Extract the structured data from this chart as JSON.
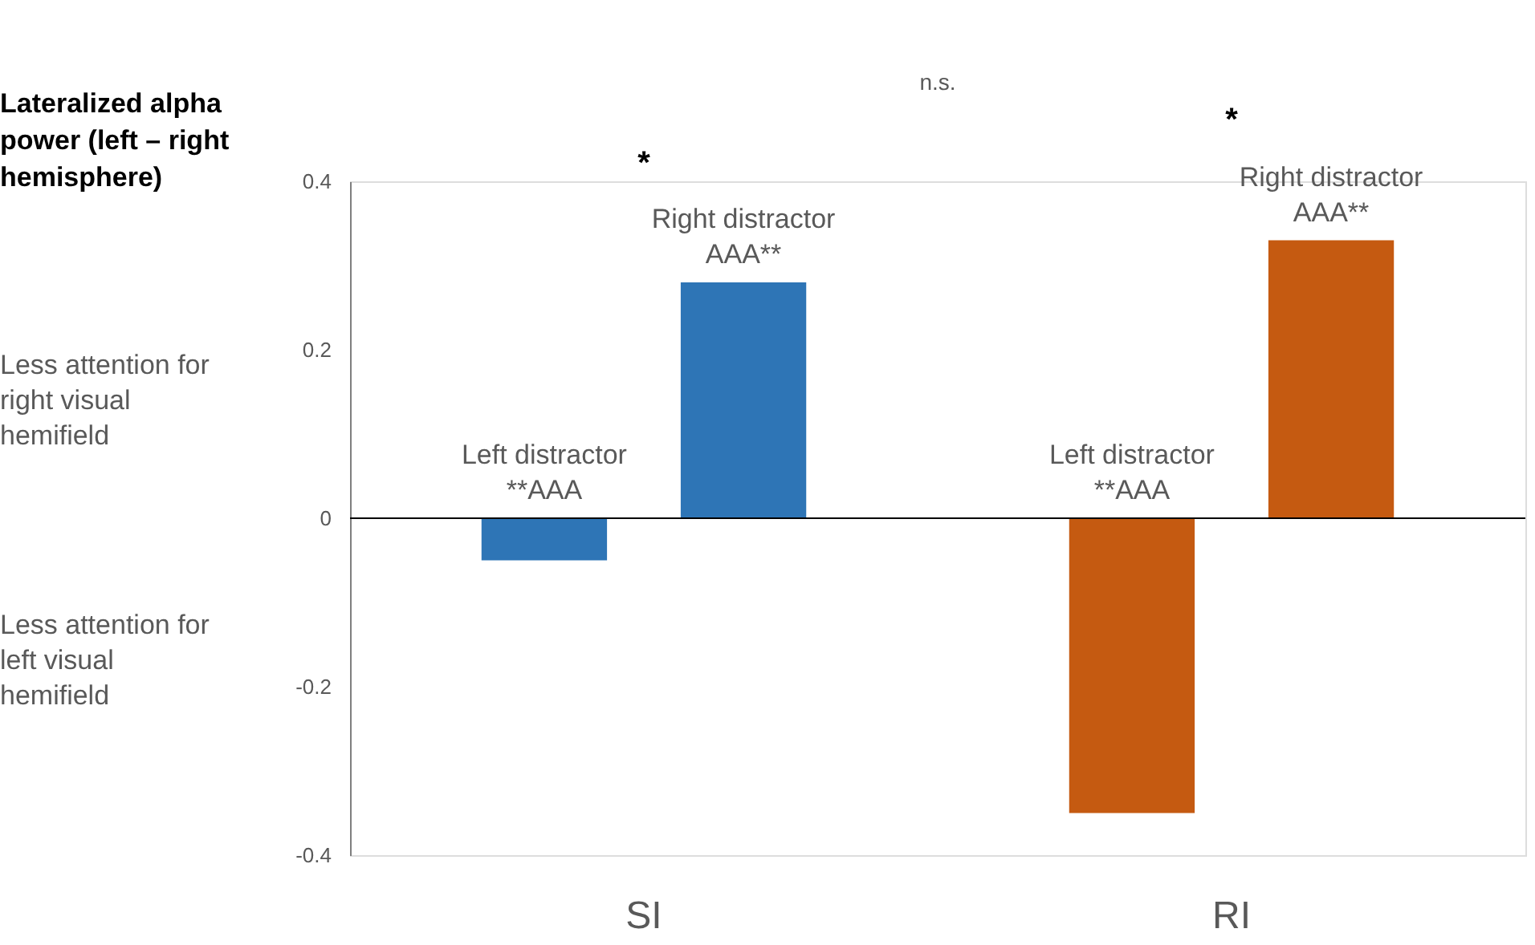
{
  "chart_data": {
    "type": "bar",
    "categories": [
      "SI",
      "RI"
    ],
    "ylabel": "Lateralized alpha power (left – right hemisphere)",
    "series": [
      {
        "name": "Left distractor",
        "colors": [
          "#2e75b6",
          "#c55a11"
        ],
        "values": [
          -0.05,
          -0.35
        ],
        "value_labels": [
          "**AAA",
          "**AAA"
        ]
      },
      {
        "name": "Right distractor",
        "colors": [
          "#2e75b6",
          "#c55a11"
        ],
        "values": [
          0.28,
          0.33
        ],
        "value_labels": [
          "AAA**",
          "AAA**"
        ]
      }
    ],
    "ylim": [
      -0.4,
      0.4
    ],
    "yticks": [
      -0.4,
      -0.2,
      {
        "value": 0,
        "label": "0"
      },
      0.2,
      0.4
    ],
    "ref_lines": [
      {
        "axis": "y",
        "value": 0,
        "color": "#000000"
      }
    ],
    "annotations": [
      "Less attention for right visual hemifield",
      "Less attention for left visual hemifield",
      "*",
      "*",
      "n.s."
    ],
    "grid": false
  }
}
